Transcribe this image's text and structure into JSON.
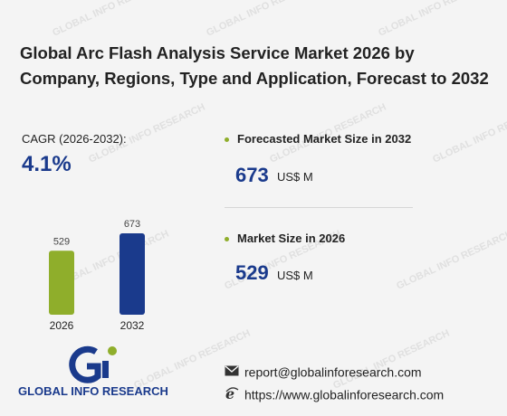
{
  "report": {
    "title": "Global Arc Flash Analysis Service Market 2026 by Company, Regions, Type and Application, Forecast to 2032"
  },
  "cagr": {
    "label": "CAGR (2026-2032):",
    "value": "4.1%"
  },
  "chart_data": {
    "type": "bar",
    "categories": [
      "2026",
      "2032"
    ],
    "values": [
      529,
      673
    ],
    "colors": [
      "#8fae2b",
      "#1a3a8c"
    ]
  },
  "stats": {
    "forecast": {
      "label": "Forecasted Market Size in 2032",
      "value": "673",
      "unit": "US$ M"
    },
    "current": {
      "label": "Market Size in 2026",
      "value": "529",
      "unit": "US$ M"
    }
  },
  "brand": {
    "name": "GLOBAL INFO RESEARCH",
    "watermark": "GLOBAL INFO RESEARCH"
  },
  "contact": {
    "email": "report@globalinforesearch.com",
    "website": "https://www.globalinforesearch.com"
  },
  "icons": {
    "email": "envelope-icon",
    "website": "ie-globe-icon"
  }
}
